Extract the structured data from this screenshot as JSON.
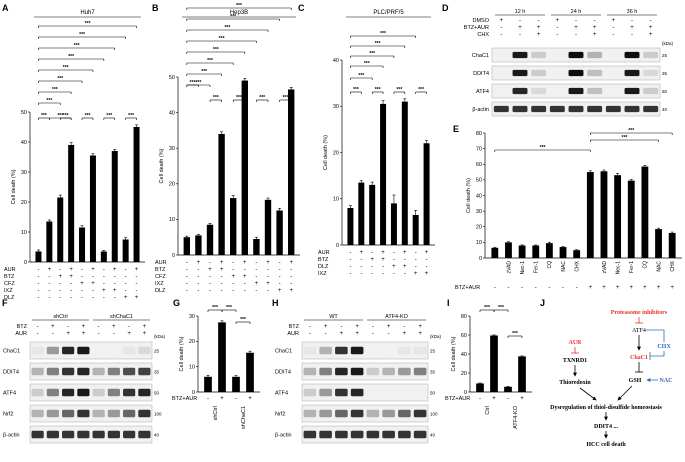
{
  "panels": {
    "A": "A",
    "B": "B",
    "C": "C",
    "D": "D",
    "E": "E",
    "F": "F",
    "G": "G",
    "H": "H",
    "I": "I",
    "J": "J"
  },
  "sig": "***",
  "yaxis_label": "Cell death (%)",
  "row_labels_abc": {
    "aur": "AUR",
    "btz": "BTZ",
    "cfz": "CFZ",
    "ixz": "IXZ",
    "dlz": "DLZ"
  },
  "btz_aur": "BTZ+AUR",
  "chart_data": [
    {
      "type": "bar",
      "panel": "A",
      "title": "Huh7",
      "ylabel": "Cell death (%)",
      "ylim": [
        0,
        50
      ],
      "yticks": [
        0,
        10,
        20,
        30,
        40,
        50
      ],
      "values": [
        3.5,
        13.5,
        21.5,
        39,
        11.5,
        35.5,
        3.5,
        37,
        7.5,
        45
      ],
      "errors": [
        0.5,
        0.5,
        0.8,
        0.8,
        0.6,
        0.6,
        0.4,
        0.5,
        0.6,
        0.7
      ],
      "rows": {
        "AUR": [
          "-",
          "+",
          "-",
          "+",
          "-",
          "+",
          "-",
          "+",
          "-",
          "+"
        ],
        "BTZ": [
          "-",
          "-",
          "+",
          "+",
          "-",
          "-",
          "-",
          "-",
          "-",
          "-"
        ],
        "CFZ": [
          "-",
          "-",
          "-",
          "-",
          "+",
          "+",
          "-",
          "-",
          "-",
          "-"
        ],
        "IXZ": [
          "-",
          "-",
          "-",
          "-",
          "-",
          "-",
          "+",
          "+",
          "-",
          "-"
        ],
        "DLZ": [
          "-",
          "-",
          "-",
          "-",
          "-",
          "-",
          "-",
          "-",
          "+",
          "+"
        ]
      }
    },
    {
      "type": "bar",
      "panel": "B",
      "title": "Hep3B",
      "ylabel": "Cell death (%)",
      "ylim": [
        0,
        50
      ],
      "yticks": [
        0,
        10,
        20,
        30,
        40,
        50
      ],
      "values": [
        5,
        5.5,
        8.5,
        34,
        16,
        49,
        4.5,
        15.5,
        12.5,
        46.5
      ],
      "errors": [
        0.3,
        0.3,
        0.4,
        0.6,
        0.7,
        0.6,
        0.5,
        0.5,
        0.6,
        0.6
      ],
      "rows": {
        "AUR": [
          "-",
          "+",
          "-",
          "+",
          "-",
          "+",
          "-",
          "+",
          "-",
          "+"
        ],
        "BTZ": [
          "-",
          "-",
          "+",
          "+",
          "-",
          "-",
          "-",
          "-",
          "-",
          "-"
        ],
        "CFZ": [
          "-",
          "-",
          "-",
          "-",
          "+",
          "+",
          "-",
          "-",
          "-",
          "-"
        ],
        "IXZ": [
          "-",
          "-",
          "-",
          "-",
          "-",
          "-",
          "+",
          "+",
          "-",
          "-"
        ],
        "DLZ": [
          "-",
          "-",
          "-",
          "-",
          "-",
          "-",
          "-",
          "-",
          "+",
          "+"
        ]
      }
    },
    {
      "type": "bar",
      "panel": "C",
      "title": "PLC/PRF/5",
      "ylabel": "Cell death (%)",
      "ylim": [
        0,
        40
      ],
      "yticks": [
        0,
        10,
        20,
        30,
        40
      ],
      "values": [
        8,
        13.5,
        13,
        30.5,
        9,
        31,
        6.5,
        22
      ],
      "errors": [
        0.5,
        0.4,
        0.6,
        0.7,
        1.8,
        0.6,
        1.0,
        0.6
      ],
      "rows": {
        "AUR": [
          "-",
          "+",
          "-",
          "+",
          "-",
          "+",
          "-",
          "+"
        ],
        "BTZ": [
          "-",
          "-",
          "+",
          "+",
          "-",
          "-",
          "-",
          "-"
        ],
        "DLZ": [
          "-",
          "-",
          "-",
          "-",
          "+",
          "+",
          "-",
          "-"
        ],
        "IXZ": [
          "-",
          "-",
          "-",
          "-",
          "-",
          "-",
          "+",
          "+"
        ]
      }
    },
    {
      "type": "bar",
      "panel": "E",
      "ylabel": "Cell death (%)",
      "ylim": [
        0,
        80
      ],
      "yticks": [
        0,
        10,
        20,
        30,
        40,
        50,
        60,
        70,
        80
      ],
      "categories": [
        "",
        "zVAD",
        "Nec-1",
        "Fer-1",
        "CQ",
        "NAC",
        "CHX",
        "",
        "zVAD",
        "Nec-1",
        "Fer-1",
        "CQ",
        "NAC",
        "CHX"
      ],
      "values": [
        6.5,
        10,
        8,
        8,
        9.5,
        7,
        5,
        55,
        55.5,
        53,
        49.5,
        58.5,
        18.5,
        16
      ],
      "errors": [
        0.4,
        0.4,
        0.4,
        0.3,
        0.6,
        0.4,
        0.3,
        0.8,
        0.8,
        1.2,
        0.8,
        0.8,
        0.6,
        0.6
      ],
      "btz_aur": [
        "-",
        "-",
        "-",
        "-",
        "-",
        "-",
        "-",
        "+",
        "+",
        "+",
        "+",
        "+",
        "+",
        "+"
      ]
    },
    {
      "type": "bar",
      "panel": "G",
      "ylabel": "Cell death (%)",
      "ylim": [
        0,
        30
      ],
      "yticks": [
        0,
        10,
        20,
        30
      ],
      "categories": [
        "shCtrl",
        "shCtrl",
        "shChaC1",
        "shChaC1"
      ],
      "xlabels": [
        "shCtrl",
        "shChaC1"
      ],
      "values": [
        6,
        27.5,
        6,
        15.5
      ],
      "errors": [
        0.6,
        0.6,
        0.5,
        0.6
      ],
      "btz_aur": [
        "-",
        "+",
        "-",
        "+"
      ]
    },
    {
      "type": "bar",
      "panel": "I",
      "ylabel": "Cell death (%)",
      "ylim": [
        0,
        80
      ],
      "yticks": [
        0,
        20,
        40,
        60,
        80
      ],
      "categories": [
        "Ctrl",
        "Ctrl",
        "ATF4-KO",
        "ATF4-KO"
      ],
      "xlabels": [
        "Ctrl",
        "ATF4-KO"
      ],
      "values": [
        9,
        59.5,
        5.5,
        37.5
      ],
      "errors": [
        0.5,
        0.6,
        0.4,
        0.5
      ],
      "btz_aur": [
        "-",
        "+",
        "-",
        "+"
      ]
    }
  ],
  "panel_d": {
    "times": [
      "12 h",
      "24 h",
      "36 h"
    ],
    "rows": {
      "DMSO": "DMSO",
      "BTZ+AUR": "BTZ+AUR",
      "CHX": "CHX"
    },
    "dmso": [
      "+",
      "-",
      "-",
      "+",
      "-",
      "-",
      "+",
      "-",
      "-"
    ],
    "btz_aur": [
      "-",
      "+",
      "+",
      "-",
      "+",
      "+",
      "-",
      "+",
      "+"
    ],
    "chx": [
      "-",
      "-",
      "+",
      "-",
      "-",
      "+",
      "-",
      "-",
      "+"
    ],
    "proteins": [
      "ChaC1",
      "DDIT4",
      "ATF4",
      "β-actin"
    ],
    "kda": "(kDa)",
    "mw": [
      "25",
      "35",
      "50",
      "40"
    ]
  },
  "panel_f": {
    "groups": [
      "shCtrl",
      "shChaC1"
    ],
    "btz": [
      "-",
      "+",
      "-",
      "+",
      "-",
      "+",
      "-",
      "+"
    ],
    "aur": [
      "-",
      "-",
      "+",
      "+",
      "-",
      "-",
      "+",
      "+"
    ],
    "row_labels": {
      "btz": "BTZ",
      "aur": "AUR"
    },
    "proteins": [
      "ChaC1",
      "DDIT4",
      "ATF4",
      "Nrf2",
      "β-actin"
    ],
    "kda": "(kDa)",
    "mw": [
      "25",
      "35",
      "50",
      "100",
      "40"
    ]
  },
  "panel_h": {
    "groups": [
      "WT",
      "ATF4-KO"
    ],
    "btz": [
      "-",
      "+",
      "-",
      "+",
      "-",
      "+",
      "-",
      "+"
    ],
    "aur": [
      "-",
      "-",
      "+",
      "+",
      "-",
      "-",
      "+",
      "+"
    ],
    "row_labels": {
      "btz": "BTZ",
      "aur": "AUR"
    },
    "proteins": [
      "ChaC1",
      "DDIT4",
      "ATF4",
      "Nrf2",
      "β-actin"
    ],
    "kda": "(kDa)",
    "mw": [
      "25",
      "35",
      "50",
      "100",
      "40"
    ]
  },
  "panel_j": {
    "proteasome": "Proteasome inhibitors",
    "atf4": "ATF4",
    "aur": "AUR",
    "chx": "CHX",
    "txnrd1": "TXNRD1",
    "chac1": "ChaC1",
    "thioredoxin": "Thioredoxin",
    "gsh": "GSH",
    "nac": "NAC",
    "dysreg": "Dysregulation of thiol-disulfide homeostasis",
    "ddit4": "DDIT4 ...",
    "hcc": "HCC cell death",
    "colors": {
      "red": "#e8332a",
      "blue": "#2f6db5"
    }
  }
}
